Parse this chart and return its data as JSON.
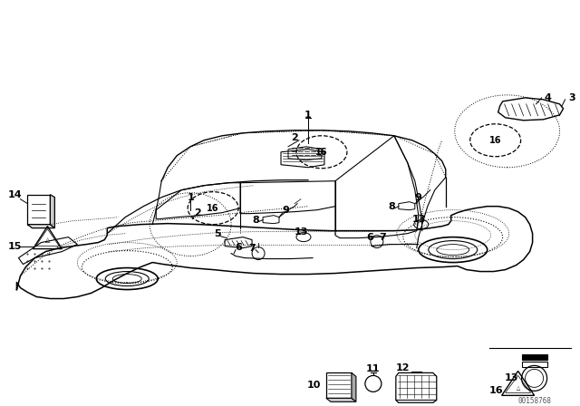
{
  "bg_color": "#ffffff",
  "line_color": "#000000",
  "fig_width": 6.4,
  "fig_height": 4.48,
  "dpi": 100,
  "watermark": "00158768",
  "car_color": "#000000",
  "dash_color": "#000000"
}
